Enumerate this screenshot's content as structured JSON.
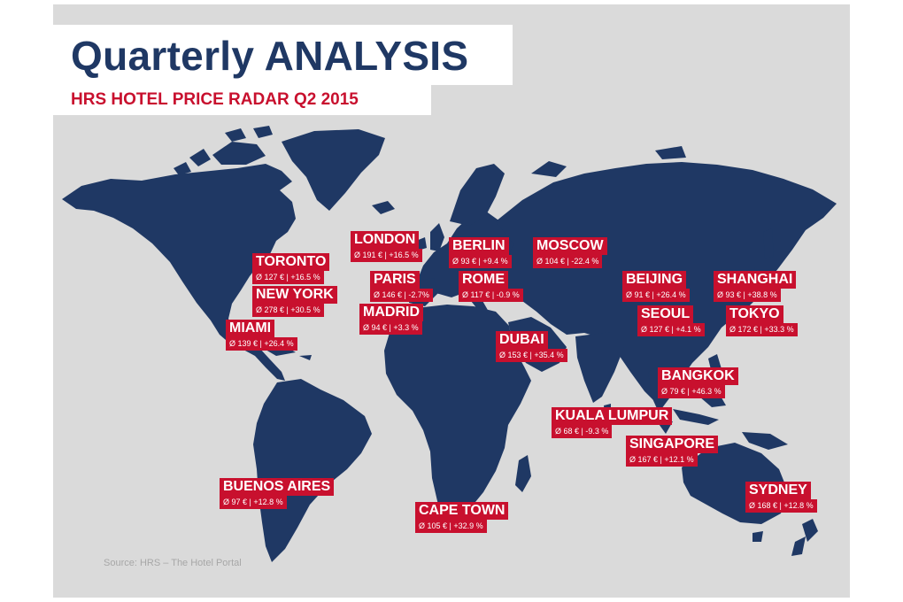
{
  "header": {
    "title": "Quarterly ANALYSIS",
    "subtitle": "HRS HOTEL PRICE RADAR Q2 2015"
  },
  "map": {
    "land_color": "#1f3864",
    "ocean_color": "#dadada",
    "label_color": "#c8102e"
  },
  "cities": [
    {
      "name": "LONDON",
      "stats": "Ø 191 € | +16.5 %"
    },
    {
      "name": "BERLIN",
      "stats": "Ø 93 € | +9.4 %"
    },
    {
      "name": "MOSCOW",
      "stats": "Ø 104 € | -22.4 %"
    },
    {
      "name": "TORONTO",
      "stats": "Ø 127 € | +16.5 %"
    },
    {
      "name": "PARIS",
      "stats": "Ø 146 € | -2.7%"
    },
    {
      "name": "ROME",
      "stats": "Ø 117 € | -0.9 %"
    },
    {
      "name": "BEIJING",
      "stats": "Ø 91 € | +26.4 %"
    },
    {
      "name": "SHANGHAI",
      "stats": "Ø 93 € | +38.8 %"
    },
    {
      "name": "NEW YORK",
      "stats": "Ø 278 € | +30.5 %"
    },
    {
      "name": "MADRID",
      "stats": "Ø 94 € | +3.3 %"
    },
    {
      "name": "SEOUL",
      "stats": "Ø 127 € | +4.1 %"
    },
    {
      "name": "TOKYO",
      "stats": "Ø 172 € | +33.3 %"
    },
    {
      "name": "MIAMI",
      "stats": "Ø 139 € | +26.4 %"
    },
    {
      "name": "DUBAI",
      "stats": "Ø 153 € | +35.4 %"
    },
    {
      "name": "BANGKOK",
      "stats": "Ø 79 € | +46.3 %"
    },
    {
      "name": "KUALA LUMPUR",
      "stats": "Ø 68 € | -9.3 %"
    },
    {
      "name": "SINGAPORE",
      "stats": "Ø 167 € | +12.1 %"
    },
    {
      "name": "BUENOS AIRES",
      "stats": "Ø 97 € | +12.8 %"
    },
    {
      "name": "SYDNEY",
      "stats": "Ø 168 € | +12.8 %"
    },
    {
      "name": "CAPE TOWN",
      "stats": "Ø 105 € | +32.9 %"
    }
  ],
  "source": "Source: HRS – The Hotel Portal"
}
